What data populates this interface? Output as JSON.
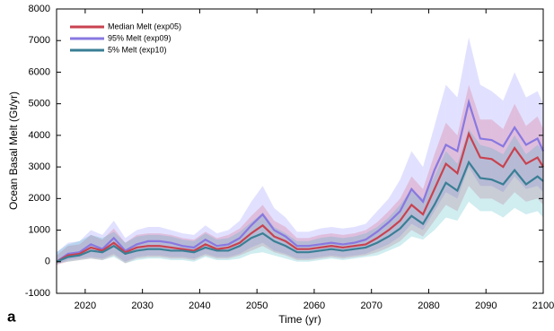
{
  "chart_data": {
    "type": "line",
    "panel_label": "a",
    "xlabel": "Time (yr)",
    "ylabel": "Ocean Basal Melt (Gt/yr)",
    "xlim": [
      2015,
      2100
    ],
    "xticks": [
      2020,
      2030,
      2040,
      2050,
      2060,
      2070,
      2080,
      2090,
      2100
    ],
    "ylim": [
      -1000,
      8000
    ],
    "yticks": [
      -1000,
      0,
      1000,
      2000,
      3000,
      4000,
      5000,
      6000,
      7000,
      8000
    ],
    "legend": "upper left",
    "x": [
      2015,
      2017,
      2019,
      2021,
      2023,
      2025,
      2027,
      2029,
      2031,
      2033,
      2035,
      2037,
      2039,
      2041,
      2043,
      2045,
      2047,
      2049,
      2051,
      2053,
      2055,
      2057,
      2059,
      2061,
      2063,
      2065,
      2067,
      2069,
      2071,
      2073,
      2075,
      2077,
      2079,
      2081,
      2083,
      2085,
      2087,
      2089,
      2091,
      2093,
      2095,
      2097,
      2099,
      2100
    ],
    "series": [
      {
        "name": "95% Melt (exp09)",
        "color": "#8878e0",
        "band_color": "rgba(120,120,255,0.22)",
        "values": [
          0,
          250,
          300,
          550,
          400,
          750,
          350,
          550,
          650,
          650,
          600,
          500,
          450,
          700,
          500,
          550,
          750,
          1150,
          1500,
          1000,
          800,
          500,
          500,
          550,
          600,
          550,
          600,
          700,
          950,
          1250,
          1600,
          2300,
          1900,
          2900,
          3700,
          3500,
          5050,
          3900,
          3850,
          3650,
          4250,
          3700,
          3900,
          3500
        ],
        "lower": [
          -100,
          50,
          100,
          150,
          100,
          250,
          0,
          150,
          200,
          200,
          150,
          150,
          100,
          250,
          150,
          150,
          250,
          450,
          600,
          350,
          250,
          100,
          100,
          150,
          200,
          150,
          200,
          250,
          400,
          550,
          800,
          1200,
          1000,
          1600,
          2200,
          2000,
          3000,
          2400,
          2400,
          2200,
          2700,
          2300,
          2400,
          2200
        ],
        "upper": [
          300,
          600,
          650,
          1000,
          850,
          1300,
          750,
          1000,
          1100,
          1100,
          1000,
          900,
          850,
          1150,
          900,
          1000,
          1300,
          1900,
          2400,
          1700,
          1400,
          950,
          950,
          1050,
          1100,
          1050,
          1100,
          1200,
          1600,
          2000,
          2600,
          3500,
          3000,
          4300,
          5600,
          5200,
          7100,
          5600,
          5400,
          5100,
          6000,
          5200,
          5400,
          5000
        ]
      },
      {
        "name": "Median Melt (exp05)",
        "color": "#c8424f",
        "band_color": "rgba(220,70,100,0.22)",
        "values": [
          0,
          200,
          250,
          450,
          350,
          600,
          300,
          450,
          500,
          500,
          450,
          400,
          350,
          550,
          400,
          450,
          600,
          900,
          1150,
          800,
          650,
          400,
          400,
          450,
          500,
          450,
          500,
          550,
          750,
          1000,
          1300,
          1800,
          1500,
          2300,
          3100,
          2800,
          4050,
          3300,
          3250,
          3000,
          3600,
          3100,
          3300,
          3000
        ],
        "lower": [
          -100,
          0,
          50,
          100,
          50,
          200,
          -50,
          100,
          150,
          150,
          100,
          100,
          50,
          200,
          100,
          100,
          200,
          350,
          500,
          300,
          200,
          50,
          50,
          100,
          150,
          100,
          150,
          200,
          300,
          450,
          650,
          1000,
          800,
          1300,
          1800,
          1600,
          2400,
          2000,
          2000,
          1800,
          2200,
          1900,
          2000,
          1800
        ],
        "upper": [
          200,
          500,
          550,
          850,
          700,
          1050,
          600,
          850,
          900,
          900,
          850,
          750,
          700,
          950,
          750,
          850,
          1050,
          1450,
          1800,
          1300,
          1100,
          750,
          750,
          850,
          900,
          850,
          900,
          1000,
          1250,
          1600,
          2000,
          2700,
          2300,
          3400,
          4400,
          4000,
          5600,
          4500,
          4500,
          4200,
          5000,
          4300,
          4600,
          4200
        ]
      },
      {
        "name": "5% Melt (exp10)",
        "color": "#3a7f95",
        "band_color": "rgba(40,175,185,0.22)",
        "values": [
          0,
          150,
          200,
          350,
          300,
          500,
          250,
          350,
          400,
          400,
          350,
          350,
          300,
          450,
          350,
          350,
          500,
          750,
          900,
          650,
          500,
          300,
          300,
          350,
          400,
          350,
          400,
          450,
          600,
          800,
          1050,
          1450,
          1200,
          1800,
          2500,
          2250,
          3150,
          2650,
          2600,
          2450,
          2900,
          2450,
          2700,
          2550
        ],
        "lower": [
          -50,
          0,
          50,
          100,
          50,
          150,
          -50,
          50,
          100,
          100,
          50,
          50,
          0,
          150,
          50,
          50,
          100,
          250,
          300,
          200,
          100,
          0,
          0,
          50,
          100,
          50,
          100,
          150,
          200,
          350,
          500,
          800,
          700,
          1000,
          1400,
          1300,
          1900,
          1600,
          1600,
          1400,
          1700,
          1500,
          1600,
          1400
        ],
        "upper": [
          300,
          550,
          650,
          850,
          750,
          950,
          600,
          800,
          850,
          850,
          800,
          700,
          650,
          900,
          700,
          750,
          950,
          1250,
          1550,
          1100,
          900,
          650,
          650,
          750,
          800,
          750,
          800,
          900,
          1100,
          1400,
          1800,
          2300,
          2000,
          2700,
          3500,
          3100,
          4200,
          3700,
          3600,
          3400,
          4000,
          3400,
          3700,
          3500
        ]
      }
    ],
    "legend_order": [
      1,
      0,
      2
    ]
  }
}
